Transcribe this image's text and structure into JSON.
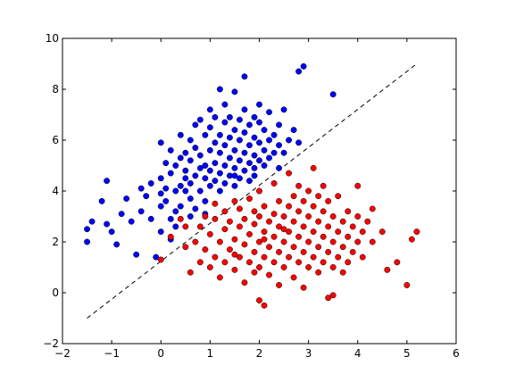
{
  "chart_data": {
    "type": "scatter",
    "title": "",
    "xlabel": "",
    "ylabel": "",
    "xlim": [
      -2,
      6
    ],
    "ylim": [
      -2,
      10
    ],
    "xticks": [
      "−2",
      "−1",
      "0",
      "1",
      "2",
      "3",
      "4",
      "5",
      "6"
    ],
    "yticks": [
      "−2",
      "0",
      "2",
      "4",
      "6",
      "8",
      "10"
    ],
    "grid": false,
    "legend": "none",
    "decision_boundary": {
      "style": "dashed",
      "color": "#000000",
      "points": [
        [
          -1.5,
          -1.0
        ],
        [
          5.2,
          9.0
        ]
      ]
    },
    "series": [
      {
        "color": "#0000ff",
        "points": [
          [
            -1.5,
            2.0
          ],
          [
            -1.5,
            2.5
          ],
          [
            -1.4,
            2.8
          ],
          [
            -1.2,
            3.6
          ],
          [
            -1.1,
            2.7
          ],
          [
            -1.1,
            4.4
          ],
          [
            -1.0,
            2.4
          ],
          [
            -0.9,
            1.9
          ],
          [
            -0.8,
            3.1
          ],
          [
            -0.7,
            3.7
          ],
          [
            -0.6,
            2.8
          ],
          [
            -0.5,
            1.5
          ],
          [
            -0.4,
            3.2
          ],
          [
            -0.4,
            4.1
          ],
          [
            -0.3,
            3.8
          ],
          [
            -0.2,
            2.9
          ],
          [
            -0.2,
            4.3
          ],
          [
            -0.1,
            1.4
          ],
          [
            0.0,
            2.4
          ],
          [
            0.0,
            3.4
          ],
          [
            0.0,
            3.9
          ],
          [
            0.0,
            4.5
          ],
          [
            0.0,
            5.9
          ],
          [
            0.1,
            3.6
          ],
          [
            0.1,
            4.1
          ],
          [
            0.1,
            5.1
          ],
          [
            0.2,
            2.1
          ],
          [
            0.2,
            2.9
          ],
          [
            0.2,
            4.7
          ],
          [
            0.2,
            5.6
          ],
          [
            0.3,
            3.2
          ],
          [
            0.3,
            4.0
          ],
          [
            0.3,
            5.0
          ],
          [
            0.4,
            3.4
          ],
          [
            0.4,
            4.2
          ],
          [
            0.4,
            5.3
          ],
          [
            0.4,
            6.2
          ],
          [
            0.5,
            4.0
          ],
          [
            0.5,
            4.8
          ],
          [
            0.5,
            5.5
          ],
          [
            0.6,
            3.0
          ],
          [
            0.6,
            3.7
          ],
          [
            0.6,
            4.3
          ],
          [
            0.6,
            5.2
          ],
          [
            0.6,
            6.0
          ],
          [
            0.7,
            3.3
          ],
          [
            0.7,
            4.6
          ],
          [
            0.7,
            5.7
          ],
          [
            0.7,
            6.6
          ],
          [
            0.8,
            4.0
          ],
          [
            0.8,
            4.9
          ],
          [
            0.8,
            5.4
          ],
          [
            0.8,
            6.8
          ],
          [
            0.9,
            3.6
          ],
          [
            0.9,
            4.5
          ],
          [
            0.9,
            5.0
          ],
          [
            0.9,
            6.2
          ],
          [
            1.0,
            4.2
          ],
          [
            1.0,
            4.8
          ],
          [
            1.0,
            5.6
          ],
          [
            1.0,
            6.5
          ],
          [
            1.0,
            7.2
          ],
          [
            1.1,
            4.4
          ],
          [
            1.1,
            5.1
          ],
          [
            1.1,
            5.9
          ],
          [
            1.1,
            6.9
          ],
          [
            1.2,
            4.0
          ],
          [
            1.2,
            4.7
          ],
          [
            1.2,
            5.5
          ],
          [
            1.2,
            6.2
          ],
          [
            1.3,
            4.3
          ],
          [
            1.3,
            5.0
          ],
          [
            1.3,
            5.8
          ],
          [
            1.3,
            6.7
          ],
          [
            1.3,
            7.4
          ],
          [
            1.4,
            4.6
          ],
          [
            1.4,
            5.3
          ],
          [
            1.4,
            6.1
          ],
          [
            1.4,
            6.9
          ],
          [
            1.5,
            4.2
          ],
          [
            1.5,
            4.9
          ],
          [
            1.5,
            5.6
          ],
          [
            1.5,
            6.4
          ],
          [
            1.5,
            7.9
          ],
          [
            1.6,
            4.5
          ],
          [
            1.6,
            5.2
          ],
          [
            1.6,
            6.0
          ],
          [
            1.6,
            6.8
          ],
          [
            1.7,
            4.8
          ],
          [
            1.7,
            5.5
          ],
          [
            1.7,
            6.3
          ],
          [
            1.7,
            7.2
          ],
          [
            1.8,
            4.4
          ],
          [
            1.8,
            5.1
          ],
          [
            1.8,
            5.8
          ],
          [
            1.8,
            6.6
          ],
          [
            1.9,
            4.9
          ],
          [
            1.9,
            5.4
          ],
          [
            1.9,
            6.1
          ],
          [
            1.9,
            6.9
          ],
          [
            2.0,
            5.2
          ],
          [
            2.0,
            5.9
          ],
          [
            2.0,
            6.7
          ],
          [
            2.0,
            7.4
          ],
          [
            2.1,
            5.0
          ],
          [
            2.1,
            5.6
          ],
          [
            2.1,
            6.4
          ],
          [
            2.2,
            5.3
          ],
          [
            2.2,
            6.0
          ],
          [
            2.2,
            7.1
          ],
          [
            2.3,
            5.5
          ],
          [
            2.3,
            6.2
          ],
          [
            2.4,
            5.8
          ],
          [
            2.4,
            6.6
          ],
          [
            2.5,
            5.5
          ],
          [
            2.5,
            7.2
          ],
          [
            2.6,
            6.0
          ],
          [
            2.7,
            6.4
          ],
          [
            2.8,
            5.9
          ],
          [
            2.8,
            8.7
          ],
          [
            2.9,
            8.9
          ],
          [
            1.7,
            8.5
          ],
          [
            1.2,
            8.0
          ],
          [
            3.5,
            7.8
          ],
          [
            0.5,
            4.5
          ],
          [
            1.5,
            4.6
          ],
          [
            2.4,
            4.9
          ],
          [
            0.9,
            3.1
          ],
          [
            0.3,
            2.6
          ],
          [
            1.9,
            4.6
          ]
        ]
      },
      {
        "color": "#ff0000",
        "points": [
          [
            0.0,
            1.3
          ],
          [
            0.2,
            2.2
          ],
          [
            0.4,
            2.9
          ],
          [
            0.5,
            1.8
          ],
          [
            0.5,
            2.6
          ],
          [
            0.6,
            0.8
          ],
          [
            0.7,
            2.0
          ],
          [
            0.8,
            1.2
          ],
          [
            0.8,
            2.6
          ],
          [
            0.9,
            1.7
          ],
          [
            0.9,
            3.0
          ],
          [
            1.0,
            1.0
          ],
          [
            1.0,
            2.3
          ],
          [
            1.1,
            1.4
          ],
          [
            1.1,
            2.9
          ],
          [
            1.1,
            3.5
          ],
          [
            1.2,
            0.6
          ],
          [
            1.2,
            2.0
          ],
          [
            1.3,
            1.2
          ],
          [
            1.3,
            2.5
          ],
          [
            1.3,
            3.2
          ],
          [
            1.4,
            1.7
          ],
          [
            1.4,
            2.8
          ],
          [
            1.5,
            0.9
          ],
          [
            1.5,
            2.1
          ],
          [
            1.5,
            3.6
          ],
          [
            1.6,
            1.4
          ],
          [
            1.6,
            2.6
          ],
          [
            1.6,
            3.3
          ],
          [
            1.7,
            0.4
          ],
          [
            1.7,
            1.9
          ],
          [
            1.7,
            2.9
          ],
          [
            1.8,
            1.2
          ],
          [
            1.8,
            2.3
          ],
          [
            1.8,
            3.7
          ],
          [
            1.9,
            0.8
          ],
          [
            1.9,
            1.6
          ],
          [
            1.9,
            2.7
          ],
          [
            1.9,
            3.2
          ],
          [
            2.0,
            -0.3
          ],
          [
            2.0,
            1.0
          ],
          [
            2.0,
            2.0
          ],
          [
            2.0,
            3.0
          ],
          [
            2.0,
            4.0
          ],
          [
            2.1,
            1.4
          ],
          [
            2.1,
            2.4
          ],
          [
            2.1,
            3.4
          ],
          [
            2.1,
            -0.5
          ],
          [
            2.2,
            0.7
          ],
          [
            2.2,
            1.8
          ],
          [
            2.2,
            2.8
          ],
          [
            2.3,
            1.2
          ],
          [
            2.3,
            2.2
          ],
          [
            2.3,
            3.1
          ],
          [
            2.3,
            4.3
          ],
          [
            2.4,
            0.3
          ],
          [
            2.4,
            1.6
          ],
          [
            2.4,
            2.6
          ],
          [
            2.4,
            3.6
          ],
          [
            2.5,
            1.0
          ],
          [
            2.5,
            2.0
          ],
          [
            2.5,
            3.0
          ],
          [
            2.6,
            1.4
          ],
          [
            2.6,
            2.4
          ],
          [
            2.6,
            3.4
          ],
          [
            2.6,
            4.7
          ],
          [
            2.7,
            0.6
          ],
          [
            2.7,
            1.8
          ],
          [
            2.7,
            2.8
          ],
          [
            2.7,
            3.8
          ],
          [
            2.8,
            1.2
          ],
          [
            2.8,
            2.2
          ],
          [
            2.8,
            3.2
          ],
          [
            2.8,
            4.2
          ],
          [
            2.9,
            0.2
          ],
          [
            2.9,
            1.6
          ],
          [
            2.9,
            2.6
          ],
          [
            2.9,
            3.6
          ],
          [
            3.0,
            1.0
          ],
          [
            3.0,
            2.0
          ],
          [
            3.0,
            3.0
          ],
          [
            3.0,
            4.0
          ],
          [
            3.1,
            1.4
          ],
          [
            3.1,
            2.4
          ],
          [
            3.1,
            3.4
          ],
          [
            3.1,
            4.9
          ],
          [
            3.2,
            0.8
          ],
          [
            3.2,
            1.8
          ],
          [
            3.2,
            2.8
          ],
          [
            3.2,
            3.8
          ],
          [
            3.3,
            1.2
          ],
          [
            3.3,
            2.2
          ],
          [
            3.3,
            3.2
          ],
          [
            3.3,
            4.2
          ],
          [
            3.4,
            -0.2
          ],
          [
            3.4,
            1.6
          ],
          [
            3.4,
            2.6
          ],
          [
            3.4,
            3.6
          ],
          [
            3.5,
            1.0
          ],
          [
            3.5,
            2.0
          ],
          [
            3.5,
            3.0
          ],
          [
            3.6,
            1.4
          ],
          [
            3.6,
            2.4
          ],
          [
            3.6,
            3.8
          ],
          [
            3.7,
            0.8
          ],
          [
            3.7,
            1.8
          ],
          [
            3.7,
            2.8
          ],
          [
            3.8,
            1.2
          ],
          [
            3.8,
            2.2
          ],
          [
            3.8,
            3.2
          ],
          [
            3.9,
            1.6
          ],
          [
            3.9,
            2.6
          ],
          [
            4.0,
            2.0
          ],
          [
            4.0,
            3.0
          ],
          [
            4.0,
            4.2
          ],
          [
            4.1,
            1.4
          ],
          [
            4.1,
            2.4
          ],
          [
            4.2,
            2.8
          ],
          [
            4.3,
            2.0
          ],
          [
            4.3,
            3.3
          ],
          [
            4.5,
            2.4
          ],
          [
            4.6,
            0.9
          ],
          [
            4.8,
            1.2
          ],
          [
            5.0,
            0.3
          ],
          [
            5.1,
            2.1
          ],
          [
            5.2,
            2.4
          ],
          [
            3.5,
            -0.1
          ],
          [
            2.1,
            2.1
          ],
          [
            2.5,
            2.5
          ],
          [
            1.5,
            1.5
          ]
        ]
      }
    ]
  }
}
